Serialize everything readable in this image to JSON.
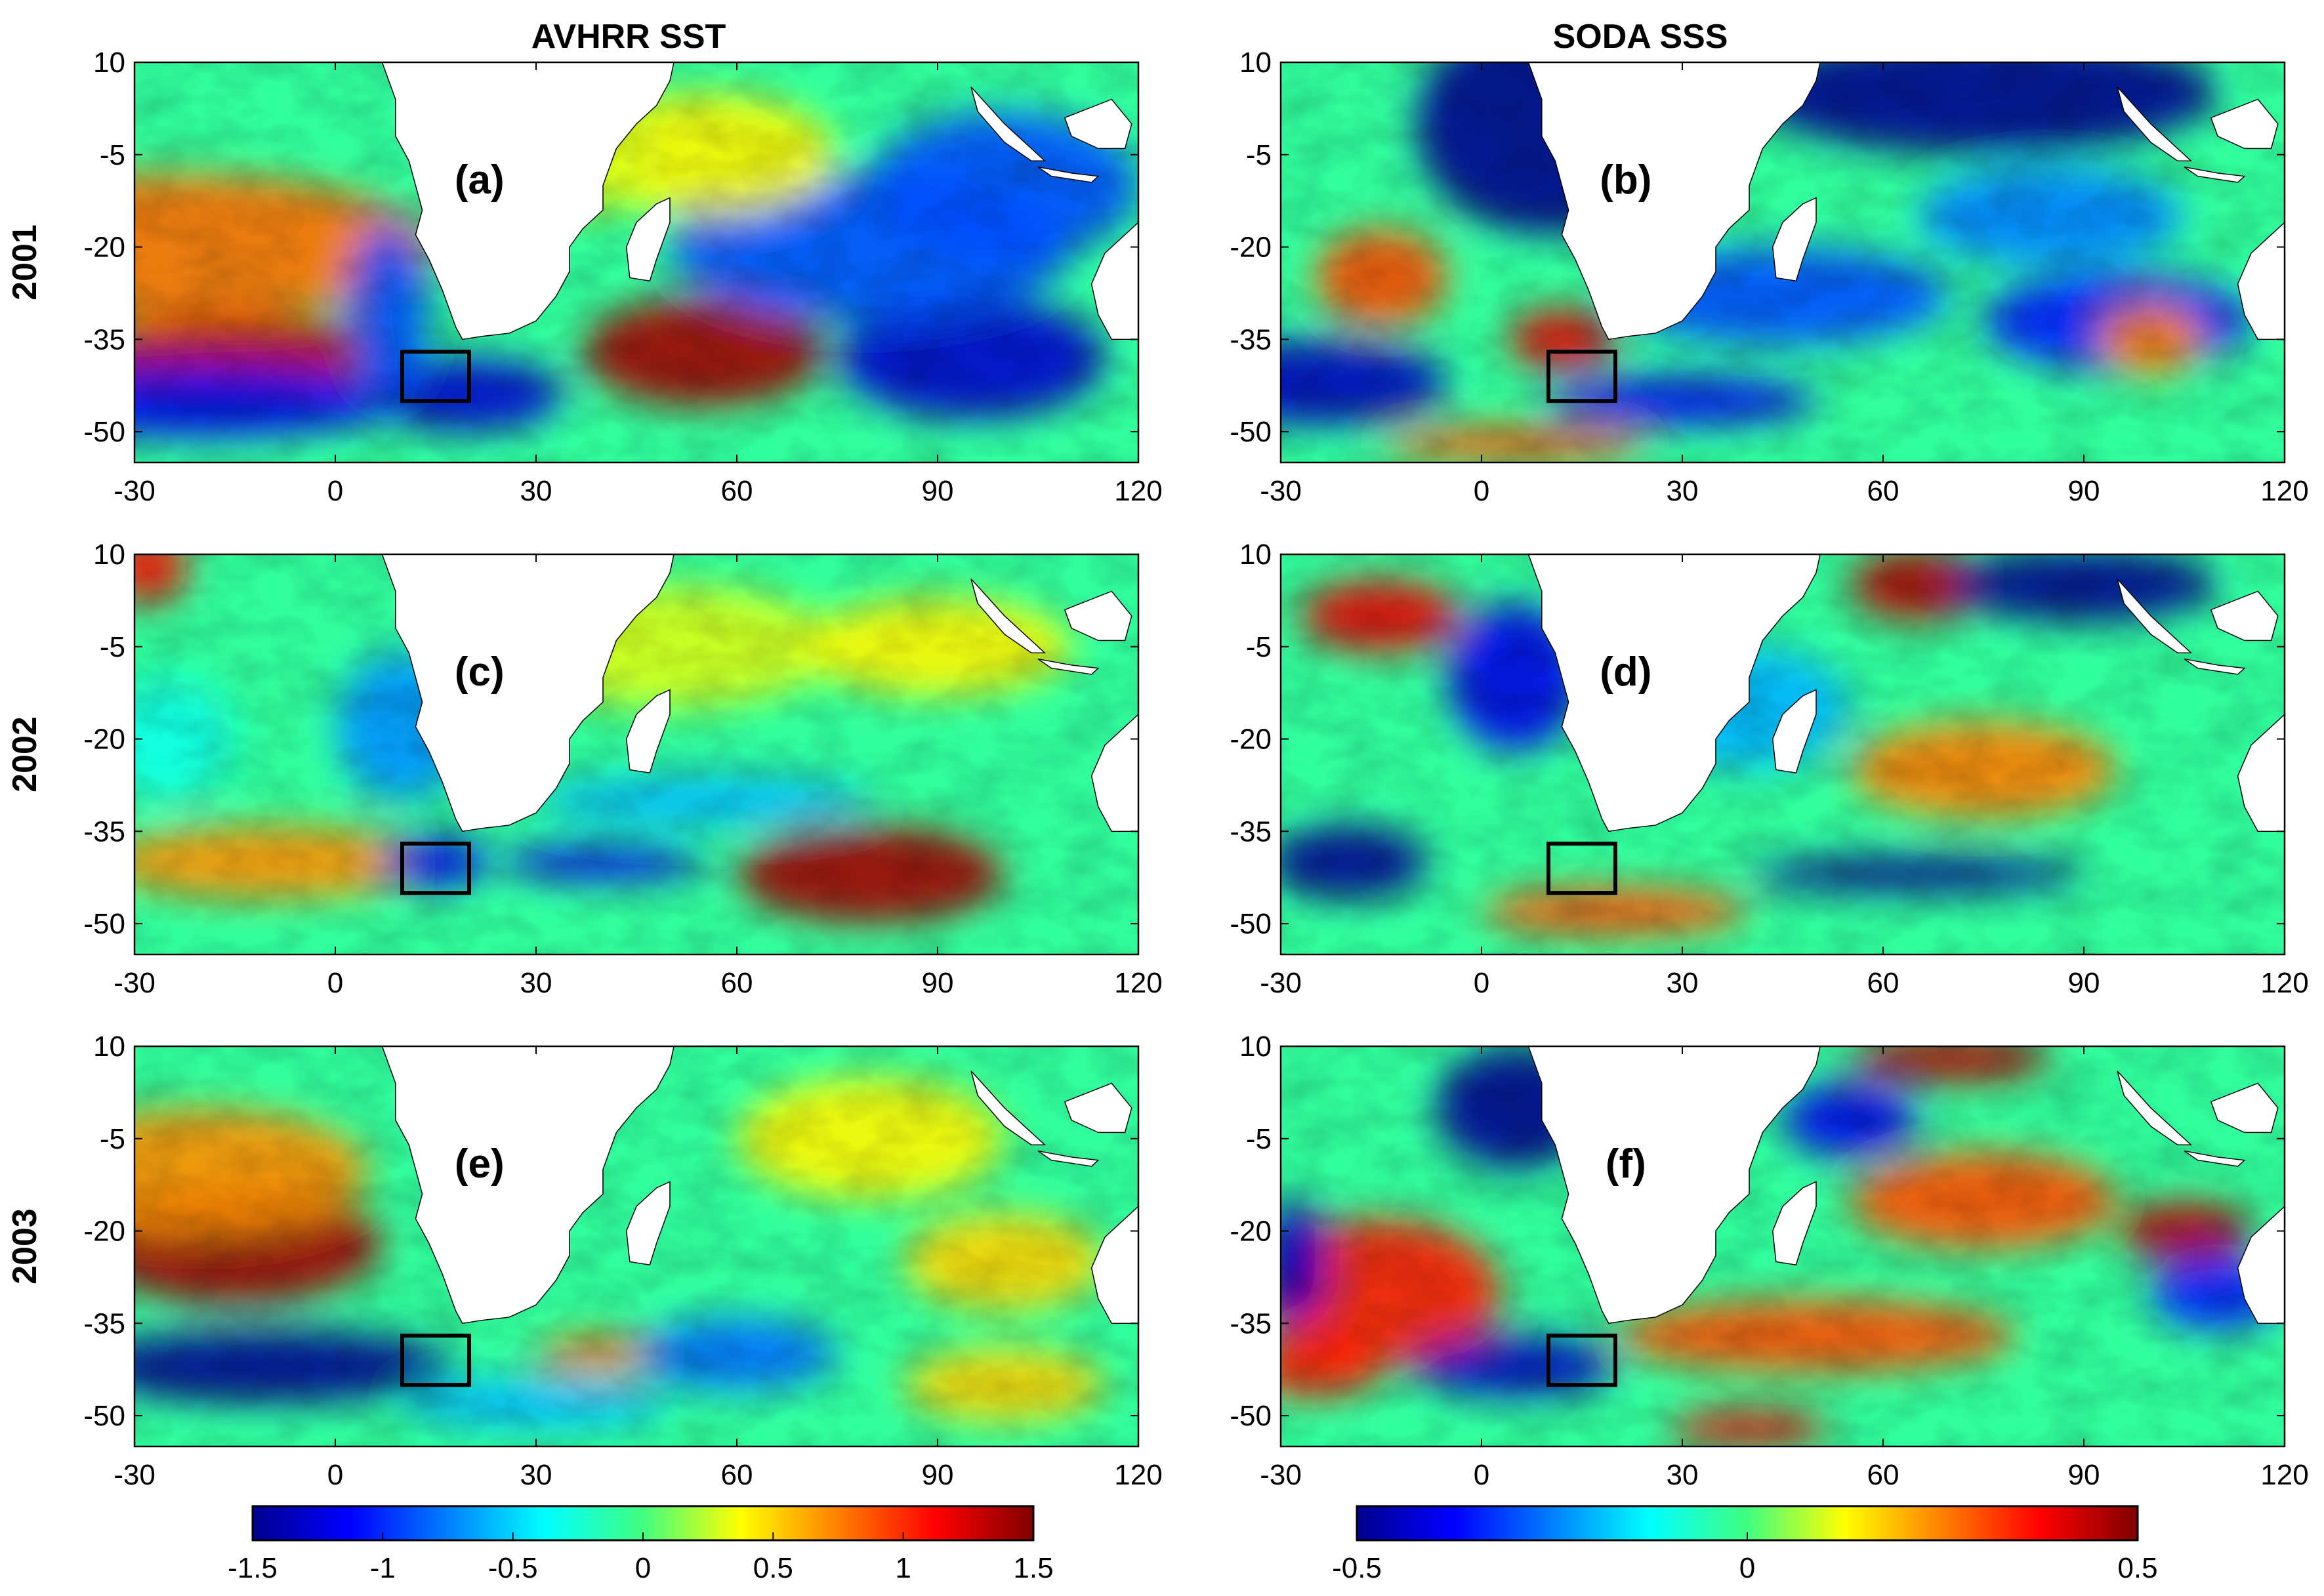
{
  "figure": {
    "column_titles": [
      "AVHRR SST",
      "SODA SSS"
    ],
    "row_labels": [
      "2001",
      "2002",
      "2003"
    ]
  },
  "map_axes": {
    "lon_ticks": [
      "-30",
      "0",
      "30",
      "60",
      "90",
      "120"
    ],
    "lat_ticks": [
      "10",
      "-5",
      "-20",
      "-35",
      "-50"
    ],
    "lon_range": [
      -30,
      120
    ],
    "lat_range": [
      10,
      -55
    ]
  },
  "study_box": {
    "lon": [
      10,
      20
    ],
    "lat": [
      -37,
      -45
    ]
  },
  "panels": [
    {
      "label": "(a)",
      "variable": "AVHRR SST",
      "year": "2001"
    },
    {
      "label": "(b)",
      "variable": "SODA SSS",
      "year": "2001"
    },
    {
      "label": "(c)",
      "variable": "AVHRR SST",
      "year": "2002"
    },
    {
      "label": "(d)",
      "variable": "SODA SSS",
      "year": "2002"
    },
    {
      "label": "(e)",
      "variable": "AVHRR SST",
      "year": "2003"
    },
    {
      "label": "(f)",
      "variable": "SODA SSS",
      "year": "2003"
    }
  ],
  "colorbars": [
    {
      "ticks": [
        "-1.5",
        "-1",
        "-0.5",
        "0",
        "0.5",
        "1",
        "1.5"
      ],
      "range": [
        -1.5,
        1.5
      ]
    },
    {
      "ticks": [
        "-0.5",
        "0",
        "0.5"
      ],
      "range": [
        -0.5,
        0.5
      ]
    }
  ],
  "colormap": "jet",
  "colors": {
    "land": "#ffffff",
    "coast": "#000000",
    "box": "#000000"
  }
}
